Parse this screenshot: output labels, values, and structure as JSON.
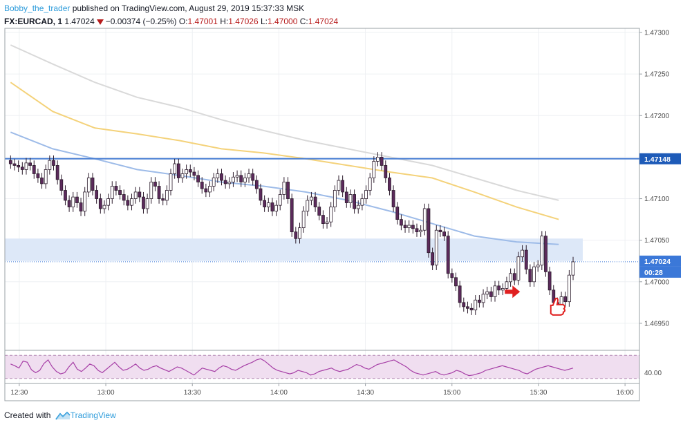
{
  "header": {
    "author": "Bobby_the_trader",
    "published": " published on TradingView.com, August 29, 2019 15:37:33 MSK",
    "symbol": "FX:EURCAD, 1",
    "last": "1.47024",
    "change": "−0.00374 (−0.25%)",
    "o_label": "O:",
    "o_value": "1.47001",
    "h_label": "H:",
    "h_value": "1.47026",
    "l_label": "L:",
    "l_value": "1.47000",
    "c_label": "C:",
    "c_value": "1.47024"
  },
  "footer": {
    "prefix": "Created with",
    "brand": "TradingView"
  },
  "colors": {
    "up": "#ffffff",
    "down": "#5c2a5c",
    "resistance": "#4a7fd4",
    "zone": "#dde8f8",
    "ma1": "#9dbbe8",
    "ma2": "#f4d27a",
    "ma3": "#d9d9d9",
    "rsi": "#a63ea6",
    "rsi_band": "#f0def0",
    "arrow": "#e02020",
    "price_tag": "#1e5bb8"
  },
  "chart_data": {
    "type": "candlestick",
    "symbol": "FX:EURCAD",
    "interval": "1",
    "ylim": [
      1.4692,
      1.47305
    ],
    "y_ticks": [
      "1.47300",
      "1.47250",
      "1.47200",
      "1.47150",
      "1.47100",
      "1.47050",
      "1.47000",
      "1.46950"
    ],
    "x_ticks": [
      "12:30",
      "13:00",
      "13:30",
      "14:00",
      "14:30",
      "15:00",
      "15:30",
      "16:00"
    ],
    "x_start": "12:25",
    "x_end": "16:05",
    "resistance_level": 1.47148,
    "resistance_label": "1.47148",
    "zone": {
      "from": 1.47025,
      "to": 1.47052
    },
    "last_price_label": "1.47024",
    "last_price": 1.47024,
    "countdown": "00:28",
    "candle_close": [
      1.47142,
      1.4714,
      1.47138,
      1.47135,
      1.47143,
      1.4714,
      1.4713,
      1.47125,
      1.47118,
      1.47135,
      1.47146,
      1.4714,
      1.47123,
      1.4711,
      1.47098,
      1.4709,
      1.47102,
      1.47095,
      1.47085,
      1.47108,
      1.47125,
      1.4711,
      1.471,
      1.47088,
      1.47092,
      1.471,
      1.47115,
      1.4711,
      1.47105,
      1.47098,
      1.47092,
      1.471,
      1.47108,
      1.47102,
      1.47088,
      1.471,
      1.4712,
      1.47115,
      1.471,
      1.47098,
      1.4711,
      1.4713,
      1.47142,
      1.47125,
      1.4713,
      1.47135,
      1.47132,
      1.47128,
      1.4712,
      1.47112,
      1.47108,
      1.47115,
      1.47125,
      1.4713,
      1.47122,
      1.47118,
      1.4712,
      1.47126,
      1.47128,
      1.4712,
      1.47125,
      1.4713,
      1.47122,
      1.47112,
      1.47098,
      1.4709,
      1.47095,
      1.47085,
      1.47092,
      1.47105,
      1.4712,
      1.471,
      1.4706,
      1.47052,
      1.47065,
      1.47085,
      1.47098,
      1.47102,
      1.4709,
      1.4708,
      1.4707,
      1.47072,
      1.4709,
      1.4711,
      1.47122,
      1.47108,
      1.47095,
      1.47105,
      1.47088,
      1.47092,
      1.471,
      1.4711,
      1.47125,
      1.47145,
      1.4715,
      1.4714,
      1.47125,
      1.4711,
      1.4709,
      1.47075,
      1.47068,
      1.47065,
      1.47068,
      1.47064,
      1.4706,
      1.47062,
      1.47088,
      1.47035,
      1.4702,
      1.47062,
      1.4706,
      1.47055,
      1.4701,
      1.47005,
      1.46995,
      1.46975,
      1.4697,
      1.46968,
      1.46966,
      1.46978,
      1.46975,
      1.46985,
      1.46988,
      1.46982,
      1.46995,
      1.4699,
      1.46992,
      1.47,
      1.4701,
      1.47002,
      1.4703,
      1.47038,
      1.47015,
      1.47,
      1.47018,
      1.4702,
      1.47055,
      1.47012,
      1.4699,
      1.46975,
      1.4697,
      1.46982,
      1.46976,
      1.47008,
      1.47024
    ],
    "ma_fast": {
      "name": "",
      "values": [
        1.4718,
        1.4716,
        1.47148,
        1.47135,
        1.47128,
        1.4712,
        1.47115,
        1.47108,
        1.47098,
        1.47085,
        1.4707,
        1.47055,
        1.47048,
        1.47045
      ]
    },
    "ma_mid": {
      "name": "",
      "values": [
        1.4724,
        1.47205,
        1.47185,
        1.47178,
        1.4717,
        1.4716,
        1.47155,
        1.47148,
        1.4714,
        1.47132,
        1.47125,
        1.47108,
        1.4709,
        1.47075
      ]
    },
    "ma_slow": {
      "name": "",
      "values": [
        1.47285,
        1.47262,
        1.4724,
        1.47222,
        1.4721,
        1.47195,
        1.47182,
        1.4717,
        1.4716,
        1.4715,
        1.4714,
        1.47125,
        1.4711,
        1.47098
      ]
    },
    "rsi": {
      "label": "40.00",
      "ylim": [
        25,
        75
      ],
      "upper": 70,
      "lower": 30,
      "values": [
        55,
        52,
        48,
        60,
        58,
        45,
        40,
        44,
        56,
        62,
        50,
        42,
        38,
        40,
        50,
        58,
        46,
        42,
        48,
        55,
        52,
        44,
        40,
        46,
        52,
        58,
        50,
        44,
        46,
        50,
        55,
        48,
        44,
        46,
        50,
        52,
        48,
        45,
        42,
        46,
        50,
        48,
        44,
        40,
        36,
        42,
        48,
        46,
        44,
        42,
        48,
        52,
        50,
        46,
        44,
        48,
        52,
        55,
        58,
        62,
        64,
        60,
        54,
        48,
        44,
        42,
        40,
        38,
        40,
        44,
        42,
        40,
        36,
        38,
        42,
        44,
        46,
        48,
        44,
        42,
        44,
        46,
        50,
        54,
        52,
        48,
        46,
        50,
        54,
        56,
        58,
        60,
        62,
        58,
        54,
        50,
        44,
        40,
        38,
        36,
        38,
        40,
        42,
        38,
        36,
        38,
        40,
        44,
        42,
        38,
        35,
        36,
        38,
        40,
        44,
        46,
        48,
        50,
        52,
        50,
        48,
        46,
        44,
        40,
        38,
        42,
        46,
        48,
        50,
        52,
        50,
        48,
        46,
        44,
        46,
        48
      ]
    },
    "annotations": [
      {
        "type": "arrow-right",
        "time_index": 129,
        "price": 1.46988
      },
      {
        "type": "thumbs-up",
        "time_index": 139,
        "price": 1.4697
      }
    ]
  }
}
